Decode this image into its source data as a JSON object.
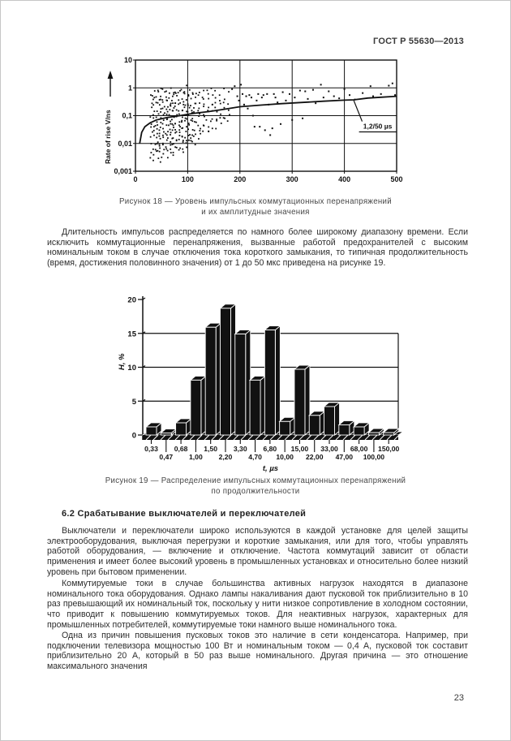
{
  "header": {
    "standard_code": "ГОСТ Р 55630—2013"
  },
  "figures": {
    "fig18": {
      "caption_line1": "Рисунок 18 — Уровень импульсных коммутационных перенапряжений",
      "caption_line2": "и их амплитудные значения"
    },
    "fig19": {
      "caption_line1": "Рисунок 19 — Распределение импульсных коммутационных перенапряжений",
      "caption_line2": "по продолжительности"
    }
  },
  "body": {
    "para1": "Длительность импульсов распределяется по намного более широкому диапазону времени. Если исключить коммутационные перенапряжения, вызванные работой предохранителей с высоким номинальным током в случае отключения тока короткого замыкания, то типичная продолжительность (время, достижения половинного значения) от 1 до 50 мкс приведена на рисунке 19.",
    "section_heading": "6.2 Срабатывание выключателей и переключателей",
    "para2": "Выключатели и переключатели широко используются в каждой установке для целей защиты электрооборудования, выключая перегрузки и короткие замыкания, или для того, чтобы управлять работой оборудования, — включение и отключение. Частота коммутаций зависит от области применения и имеет более высокий уровень в промышленных установках и относительно более низкий уровень при бытовом применении.",
    "para3": "Коммутируемые токи в случае большинства активных нагрузок находятся в диапазоне номинального тока оборудования. Однако лампы накаливания дают пусковой ток приблизительно в 10 раз превышающий их номинальный ток, поскольку у нити низкое сопротивление в холодном состоянии, что приводит к повышению коммутируемых токов. Для неактивных нагрузок, характерных для промышленных потребителей, коммутируемые токи намного выше номинального тока.",
    "para4": "Одна из причин повышения пусковых токов это наличие в сети конденсатора. Например, при подключении телевизора мощностью 100 Вт и номинальным током — 0,4 А, пусковой ток составит приблизительно 20 А, который в 50 раз выше номинального. Другая причина — это отношение максимального значения"
  },
  "footer": {
    "page_number": "23"
  },
  "chart_data": [
    {
      "type": "scatter",
      "title": "Уровень импульсных коммутационных перенапряжений и их амплитудные значения",
      "ylabel": "Rate of rise  V/ns",
      "xlabel": "",
      "xlim": [
        0,
        500
      ],
      "ylim_log": [
        0.001,
        10
      ],
      "x_ticks": [
        0,
        100,
        200,
        300,
        400,
        500
      ],
      "y_ticks": [
        {
          "value": 10,
          "label": "10"
        },
        {
          "value": 1,
          "label": "1"
        },
        {
          "value": 0.1,
          "label": "0,1"
        },
        {
          "value": 0.01,
          "label": "0,01"
        },
        {
          "value": 0.001,
          "label": "0,001"
        }
      ],
      "grid": true,
      "annotation": {
        "label": "1,2/50 мкs",
        "text": "1,2/50 µs",
        "leader_from": [
          418,
          0.35
        ],
        "leader_to": [
          434,
          0.062
        ],
        "underline_x": [
          428,
          500
        ],
        "underline_y": 0.026,
        "text_x": 436,
        "text_y": 0.042
      },
      "dense_columns": [
        {
          "x": 30,
          "n": 12,
          "lo": 0.003,
          "hi": 0.85
        },
        {
          "x": 36,
          "n": 16,
          "lo": 0.002,
          "hi": 0.9
        },
        {
          "x": 42,
          "n": 18,
          "lo": 0.003,
          "hi": 1.0
        },
        {
          "x": 48,
          "n": 20,
          "lo": 0.002,
          "hi": 0.9
        },
        {
          "x": 54,
          "n": 18,
          "lo": 0.004,
          "hi": 1.0
        },
        {
          "x": 60,
          "n": 20,
          "lo": 0.003,
          "hi": 0.9
        },
        {
          "x": 66,
          "n": 18,
          "lo": 0.005,
          "hi": 1.0
        },
        {
          "x": 72,
          "n": 20,
          "lo": 0.004,
          "hi": 0.95
        },
        {
          "x": 78,
          "n": 18,
          "lo": 0.006,
          "hi": 1.0
        },
        {
          "x": 84,
          "n": 16,
          "lo": 0.005,
          "hi": 0.85
        },
        {
          "x": 90,
          "n": 18,
          "lo": 0.004,
          "hi": 1.05
        },
        {
          "x": 96,
          "n": 16,
          "lo": 0.006,
          "hi": 1.1
        },
        {
          "x": 102,
          "n": 14,
          "lo": 0.01,
          "hi": 0.95
        },
        {
          "x": 108,
          "n": 14,
          "lo": 0.008,
          "hi": 0.85
        },
        {
          "x": 114,
          "n": 12,
          "lo": 0.01,
          "hi": 0.75
        },
        {
          "x": 122,
          "n": 12,
          "lo": 0.01,
          "hi": 0.85
        },
        {
          "x": 130,
          "n": 10,
          "lo": 0.02,
          "hi": 0.95
        },
        {
          "x": 138,
          "n": 10,
          "lo": 0.02,
          "hi": 0.85
        },
        {
          "x": 146,
          "n": 8,
          "lo": 0.03,
          "hi": 0.95
        },
        {
          "x": 154,
          "n": 8,
          "lo": 0.03,
          "hi": 0.75
        },
        {
          "x": 162,
          "n": 6,
          "lo": 0.04,
          "hi": 0.85
        },
        {
          "x": 170,
          "n": 6,
          "lo": 0.05,
          "hi": 0.95
        },
        {
          "x": 178,
          "n": 5,
          "lo": 0.05,
          "hi": 0.75
        }
      ],
      "points": [
        [
          185,
          0.9
        ],
        [
          190,
          1.15
        ],
        [
          195,
          0.5
        ],
        [
          198,
          0.35
        ],
        [
          202,
          1.3
        ],
        [
          205,
          0.6
        ],
        [
          208,
          0.25
        ],
        [
          212,
          0.5
        ],
        [
          215,
          0.18
        ],
        [
          218,
          0.55
        ],
        [
          222,
          0.45
        ],
        [
          225,
          0.1
        ],
        [
          228,
          0.04
        ],
        [
          232,
          0.35
        ],
        [
          235,
          0.6
        ],
        [
          238,
          0.04
        ],
        [
          242,
          0.45
        ],
        [
          245,
          0.55
        ],
        [
          248,
          0.03
        ],
        [
          252,
          0.6
        ],
        [
          255,
          0.25
        ],
        [
          258,
          0.02
        ],
        [
          262,
          0.035
        ],
        [
          265,
          0.6
        ],
        [
          268,
          0.45
        ],
        [
          272,
          0.3
        ],
        [
          278,
          0.05
        ],
        [
          282,
          0.7
        ],
        [
          288,
          0.35
        ],
        [
          295,
          0.6
        ],
        [
          300,
          0.07
        ],
        [
          305,
          0.45
        ],
        [
          315,
          0.8
        ],
        [
          320,
          0.08
        ],
        [
          325,
          0.75
        ],
        [
          330,
          0.4
        ],
        [
          340,
          0.85
        ],
        [
          345,
          0.28
        ],
        [
          355,
          1.3
        ],
        [
          360,
          0.45
        ],
        [
          370,
          0.75
        ],
        [
          380,
          0.5
        ],
        [
          390,
          0.42
        ],
        [
          400,
          0.9
        ],
        [
          410,
          0.55
        ],
        [
          420,
          0.38
        ],
        [
          435,
          0.65
        ],
        [
          450,
          1.15
        ],
        [
          455,
          0.5
        ],
        [
          470,
          0.6
        ],
        [
          485,
          1.2
        ],
        [
          492,
          1.45
        ],
        [
          497,
          0.55
        ]
      ],
      "trend_curve": [
        [
          8,
          0.01
        ],
        [
          12,
          0.025
        ],
        [
          18,
          0.04
        ],
        [
          28,
          0.055
        ],
        [
          40,
          0.07
        ],
        [
          60,
          0.085
        ],
        [
          85,
          0.1
        ],
        [
          110,
          0.12
        ],
        [
          140,
          0.14
        ],
        [
          170,
          0.17
        ],
        [
          200,
          0.21
        ],
        [
          240,
          0.24
        ],
        [
          280,
          0.27
        ],
        [
          320,
          0.3
        ],
        [
          360,
          0.33
        ],
        [
          400,
          0.36
        ],
        [
          418,
          0.37
        ],
        [
          445,
          0.43
        ],
        [
          470,
          0.46
        ],
        [
          500,
          0.5
        ]
      ]
    },
    {
      "type": "bar",
      "variant": "bar3d",
      "title": "Распределение импульсных коммутационных перенапряжений по продолжительности",
      "ylabel": "Н, %",
      "xlabel": "t, µs",
      "ylim": [
        0,
        20
      ],
      "y_ticks": [
        0,
        5,
        10,
        15,
        20
      ],
      "gridlines_at": [
        5,
        10,
        15
      ],
      "categories": [
        "0,33",
        "0,47",
        "0,68",
        "1,00",
        "1,50",
        "2,20",
        "3,30",
        "4,70",
        "6,80",
        "10,00",
        "15,00",
        "22,00",
        "33,00",
        "47,00",
        "68,00",
        "100,00",
        "150,00"
      ],
      "values": [
        1.2,
        0.3,
        1.8,
        8.1,
        15.9,
        18.7,
        14.9,
        8.1,
        15.5,
        2.0,
        9.7,
        2.9,
        4.2,
        1.5,
        1.2,
        0.35,
        0.35
      ]
    }
  ]
}
